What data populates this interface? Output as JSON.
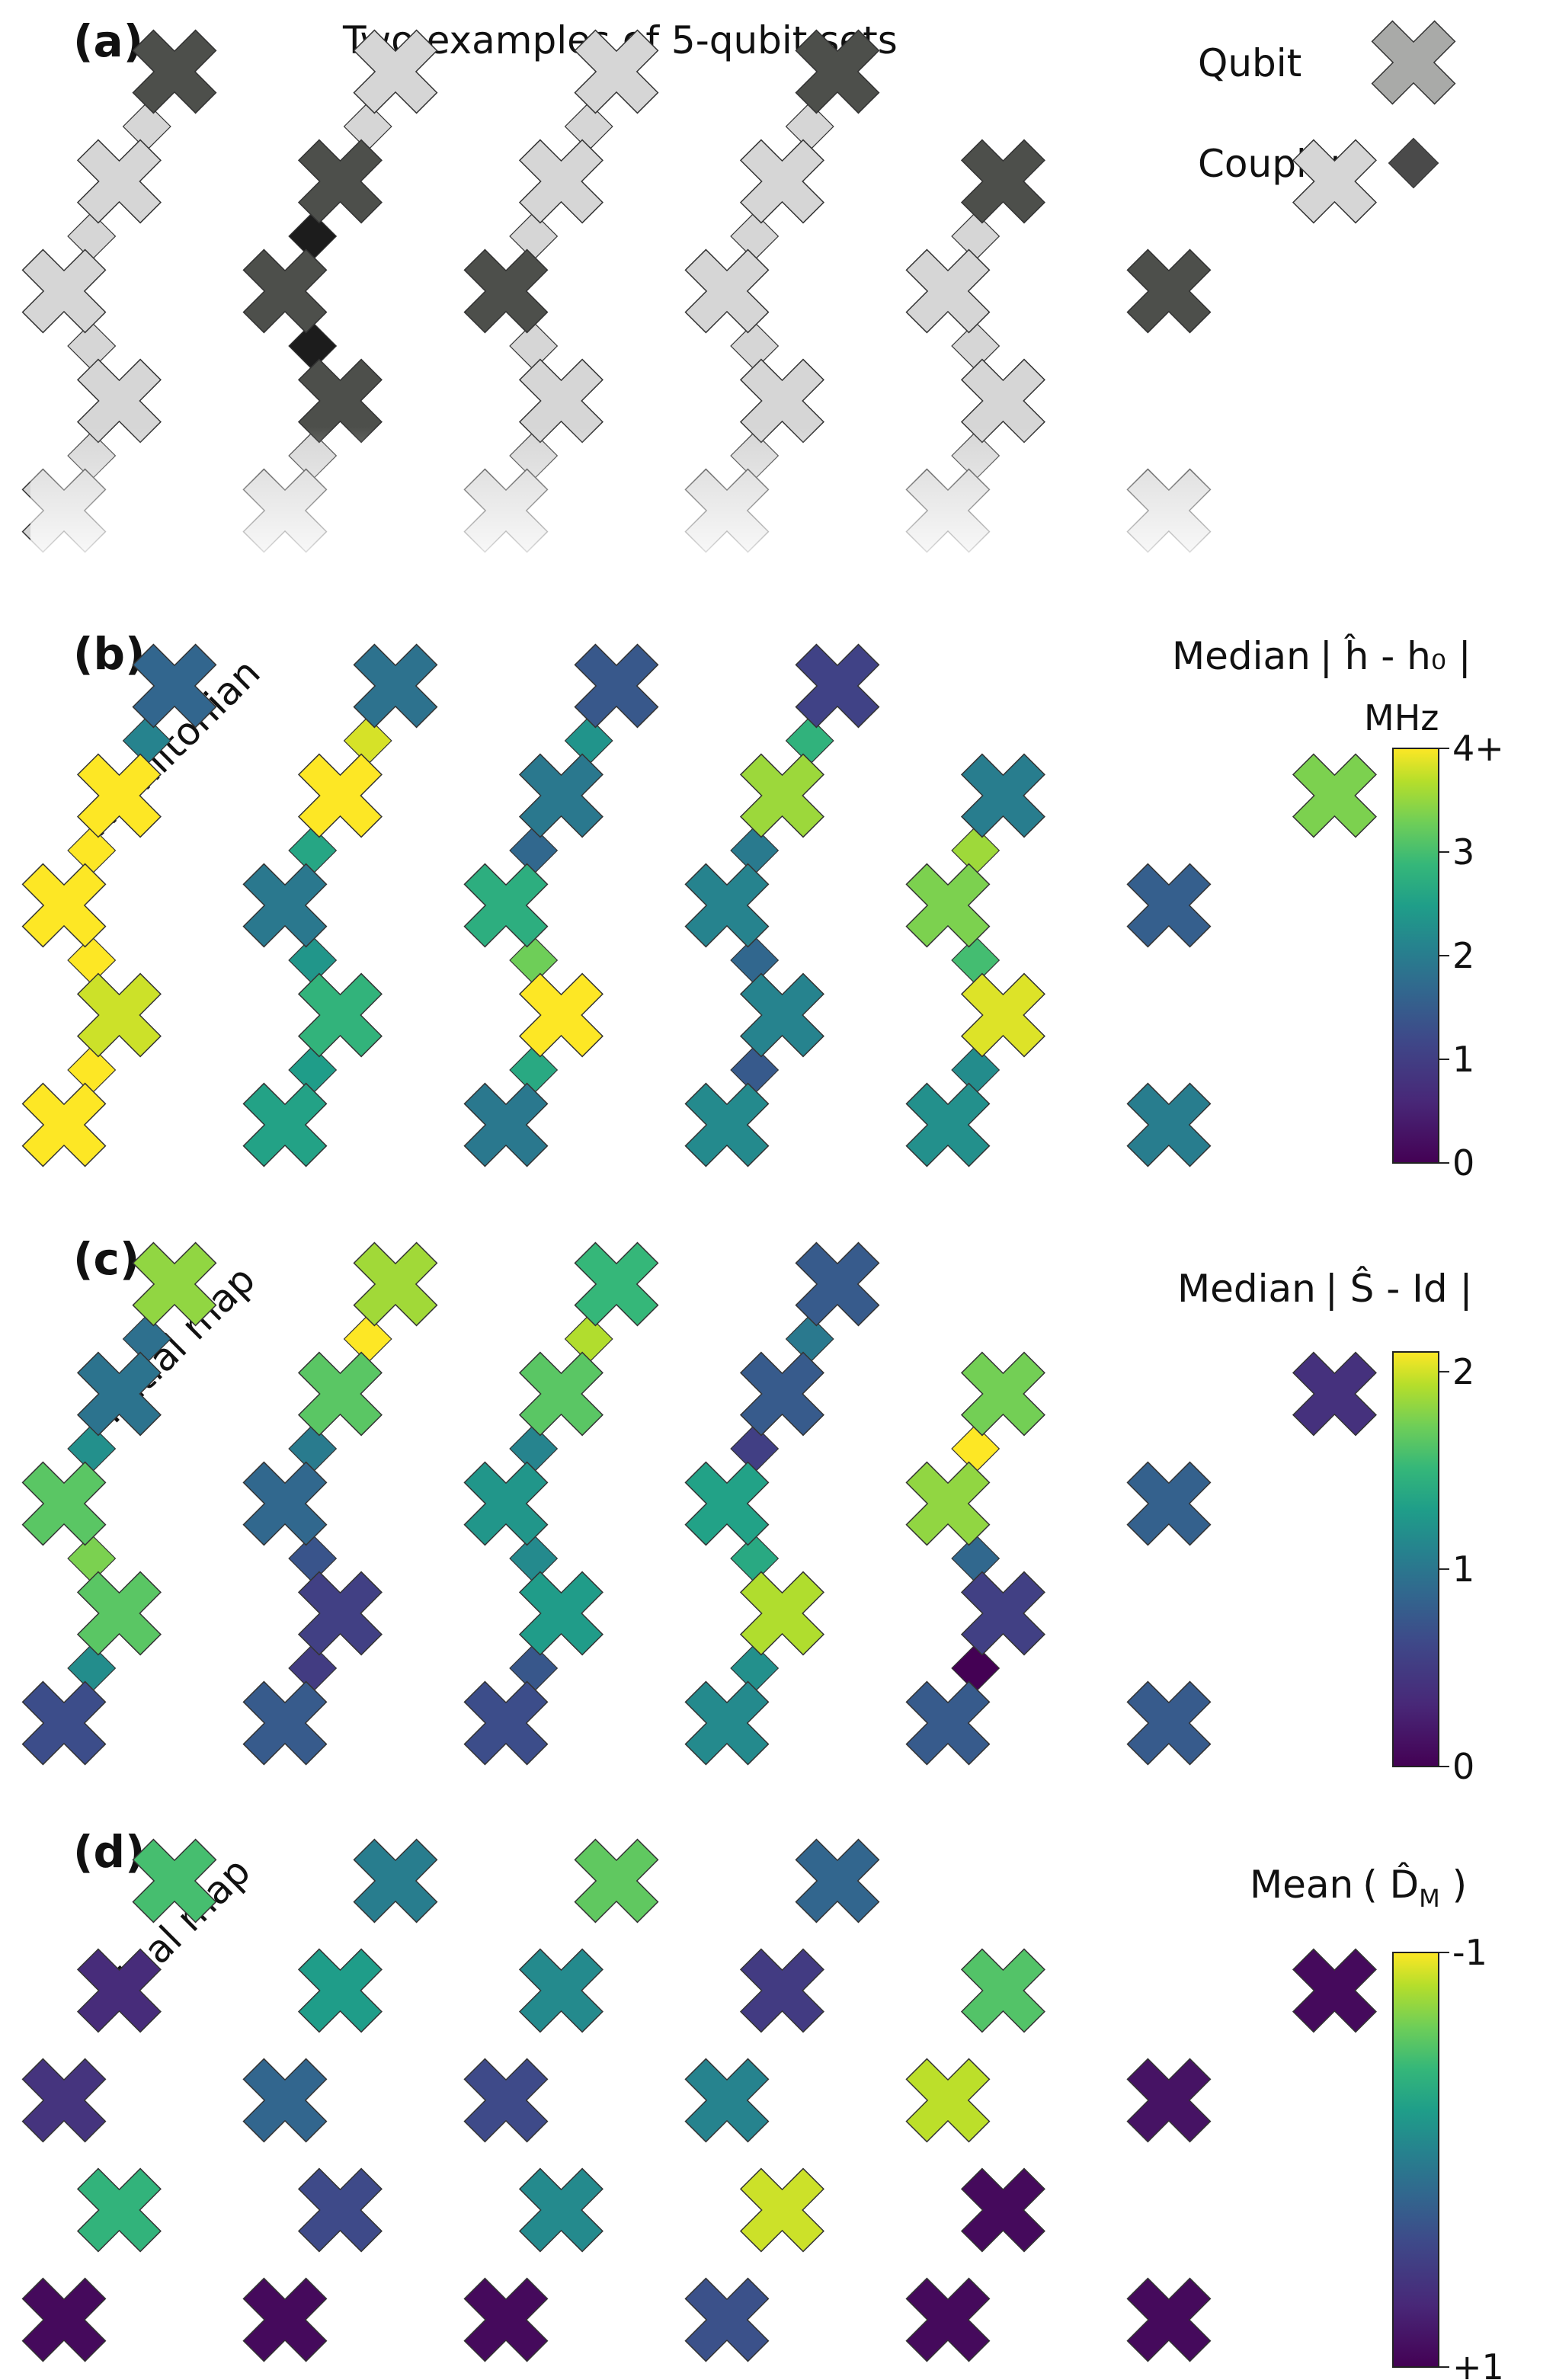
{
  "figure": {
    "panels": [
      {
        "id": "a",
        "label": "(a)",
        "title": "Two examples of 5-qubit sets"
      },
      {
        "id": "b",
        "label": "(b)",
        "side_label": "Hamiltonian"
      },
      {
        "id": "c",
        "label": "(c)",
        "side_label": "Initial map"
      },
      {
        "id": "d",
        "label": "(d)",
        "side_label": "Final map"
      }
    ],
    "legend": {
      "qubit_label": "Qubit",
      "coupler_label": "Coupler",
      "qubit_color": "#a9aaa8",
      "coupler_color": "#4a4a4a"
    },
    "colorbars": {
      "b": {
        "title_prefix": "Median",
        "title_expr": "| ĥ - h₀ |",
        "unit": "MHz",
        "ticks": [
          "0",
          "1",
          "2",
          "3",
          "4+"
        ],
        "tick_values": [
          0,
          1,
          2,
          3,
          4
        ],
        "range": [
          0,
          4
        ]
      },
      "c": {
        "title_prefix": "Median",
        "title_expr": "| Ŝ - Id |",
        "ticks": [
          "0",
          "1",
          "2"
        ],
        "tick_values": [
          0,
          1,
          2
        ],
        "range": [
          0,
          2.1
        ]
      },
      "d": {
        "title_prefix": "Mean",
        "title_expr": "( D̂",
        "title_sub": "M",
        "title_close": " )",
        "ticks": [
          "+1",
          "-1"
        ],
        "tick_values": [
          1,
          -1
        ],
        "range": [
          1,
          -1
        ]
      }
    },
    "palette": {
      "greys": {
        "light": "#d6d6d6",
        "dark_qubit": "#4d4f4b",
        "dark_coupler": "#1c1c1c"
      },
      "viridis": [
        "#440154",
        "#482878",
        "#3e4989",
        "#31688e",
        "#26828e",
        "#1f9e89",
        "#35b779",
        "#6ece58",
        "#b5de2b",
        "#fde725"
      ]
    }
  },
  "chart_data": {
    "type": "heatmap",
    "description_grid": "Qubits on a diamond lattice: rows 0-4, columns 0-5 (row 1 has extra column 6 at right edge). Couplers between neighboring qubits.",
    "panel_a": {
      "qubit_state": [
        [
          1,
          0,
          0,
          1,
          "-",
          "-",
          "-"
        ],
        [
          0,
          1,
          0,
          0,
          1,
          "-",
          0
        ],
        [
          0,
          1,
          1,
          0,
          0,
          1,
          "-"
        ],
        [
          0,
          1,
          0,
          0,
          0,
          1,
          "-"
        ],
        [
          0,
          0,
          0,
          0,
          0,
          0,
          "-"
        ]
      ],
      "note": "1 = qubit in highlighted 5-qubit set (dark), 0 = other qubit (light)"
    },
    "panel_b_qubits": [
      [
        1.3,
        1.5,
        1.1,
        0.8,
        null,
        null,
        null
      ],
      [
        4.2,
        4.1,
        1.6,
        3.4,
        1.7,
        null,
        3.2
      ],
      [
        4.3,
        1.6,
        2.5,
        1.8,
        3.2,
        1.2,
        null
      ],
      [
        3.7,
        2.6,
        4.2,
        1.8,
        3.8,
        null,
        null
      ],
      [
        4.3,
        2.3,
        1.6,
        1.9,
        2.0,
        1.7,
        null
      ]
    ],
    "panel_c_qubits": [
      [
        1.75,
        1.8,
        1.4,
        0.6,
        null,
        null,
        null
      ],
      [
        0.8,
        1.55,
        1.55,
        0.6,
        1.65,
        null,
        0.3
      ],
      [
        1.55,
        0.7,
        1.1,
        1.2,
        1.75,
        0.65,
        null
      ],
      [
        1.55,
        0.4,
        1.15,
        1.85,
        0.4,
        null,
        null
      ],
      [
        0.5,
        0.6,
        0.5,
        1.0,
        0.6,
        0.6,
        null
      ]
    ],
    "panel_d_qubits": [
      [
        -0.4,
        0.15,
        -0.5,
        0.35,
        null,
        null,
        null
      ],
      [
        0.75,
        -0.1,
        0.05,
        0.65,
        -0.45,
        null,
        0.95
      ],
      [
        0.7,
        0.35,
        0.55,
        0.1,
        -0.8,
        0.9,
        null
      ],
      [
        -0.3,
        0.55,
        0.05,
        -0.85,
        0.95,
        null,
        null
      ],
      [
        0.95,
        0.95,
        0.95,
        0.5,
        0.95,
        0.95,
        null
      ]
    ]
  }
}
